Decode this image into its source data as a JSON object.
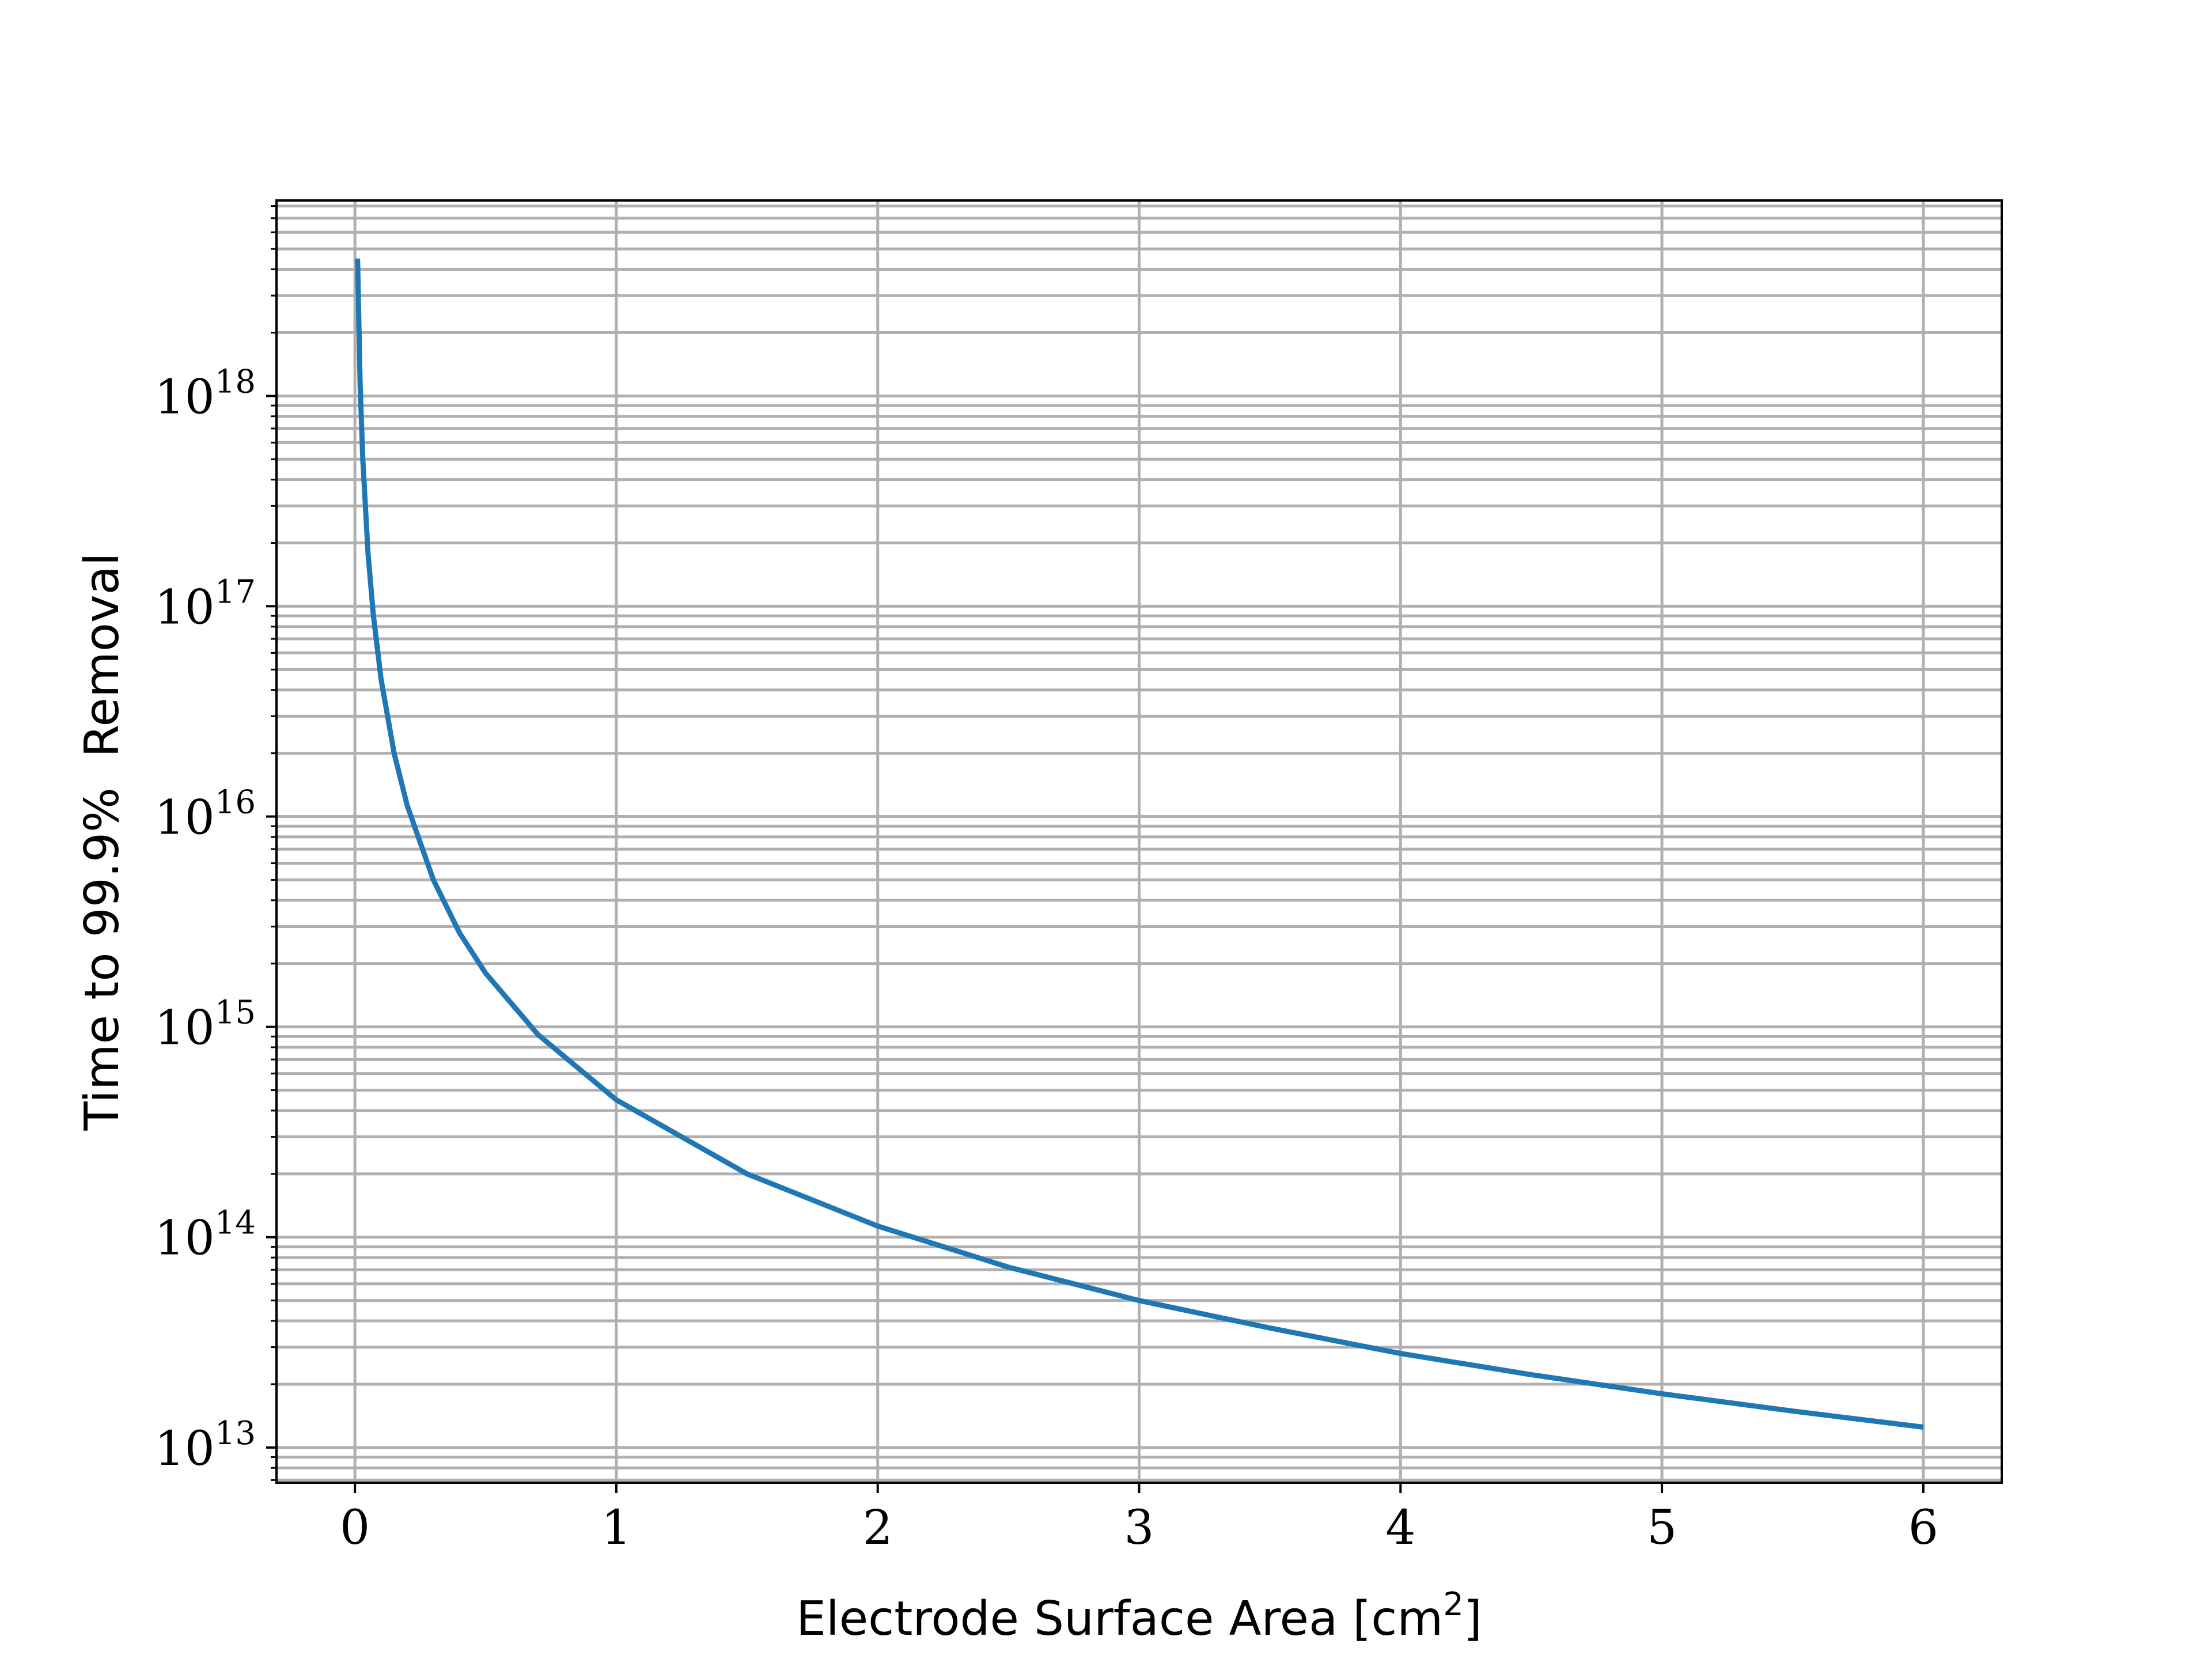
{
  "chart_data": {
    "type": "line",
    "title": "",
    "xlabel": "Electrode Surface Area [cm",
    "xlabel_sup": "2",
    "xlabel_end": "]",
    "ylabel": "Time to 99.9%  Removal",
    "xlim": [
      -0.3,
      6.3
    ],
    "ylim": [
      6800000000000.0,
      8.5e+18
    ],
    "yscale": "log",
    "grid": true,
    "x_ticks": [
      {
        "value": 0,
        "label": "0"
      },
      {
        "value": 1,
        "label": "1"
      },
      {
        "value": 2,
        "label": "2"
      },
      {
        "value": 3,
        "label": "3"
      },
      {
        "value": 4,
        "label": "4"
      },
      {
        "value": 5,
        "label": "5"
      },
      {
        "value": 6,
        "label": "6"
      }
    ],
    "y_ticks": [
      {
        "value": 10000000000000.0,
        "base": "10",
        "exp": "13"
      },
      {
        "value": 100000000000000.0,
        "base": "10",
        "exp": "14"
      },
      {
        "value": 1000000000000000.0,
        "base": "10",
        "exp": "15"
      },
      {
        "value": 1e+16,
        "base": "10",
        "exp": "16"
      },
      {
        "value": 1e+17,
        "base": "10",
        "exp": "17"
      },
      {
        "value": 1e+18,
        "base": "10",
        "exp": "18"
      }
    ],
    "series": [
      {
        "color": "#1f77b4",
        "x": [
          0.01,
          0.02,
          0.03,
          0.05,
          0.07,
          0.1,
          0.15,
          0.2,
          0.3,
          0.4,
          0.5,
          0.7,
          1.0,
          1.5,
          2.0,
          2.5,
          3.0,
          3.5,
          4.0,
          4.5,
          5.0,
          5.5,
          6.0
        ],
        "y": [
          4.5e+18,
          1.13e+18,
          5e+17,
          1.8e+17,
          9.2e+16,
          4.5e+16,
          2e+16,
          1.13e+16,
          5000000000000000.0,
          2800000000000000.0,
          1800000000000000.0,
          920000000000000.0,
          450000000000000.0,
          200000000000000.0,
          113000000000000.0,
          72000000000000.0,
          50000000000000.0,
          37000000000000.0,
          28000000000000.0,
          22200000000000.0,
          18000000000000.0,
          14900000000000.0,
          12500000000000.0
        ]
      }
    ]
  }
}
